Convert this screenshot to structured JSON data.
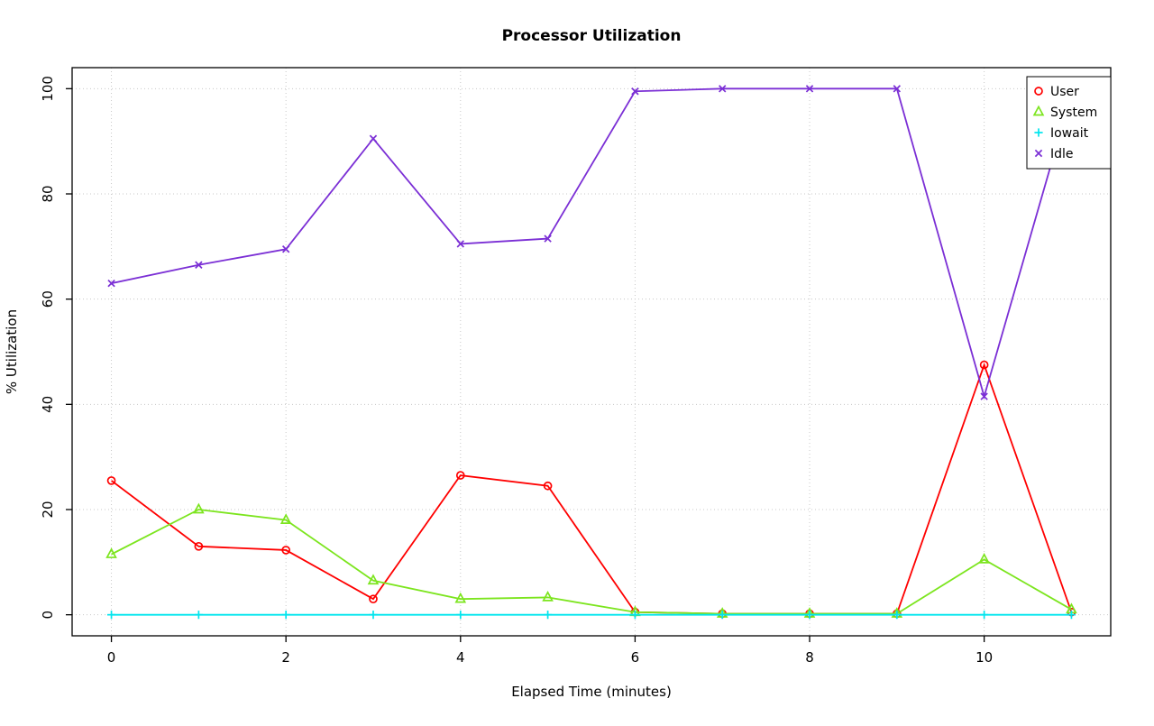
{
  "chart_data": {
    "type": "line",
    "title": "Processor Utilization",
    "xlabel": "Elapsed Time (minutes)",
    "ylabel": "% Utilization",
    "x": [
      0,
      1,
      2,
      3,
      4,
      5,
      6,
      7,
      8,
      9,
      10,
      11
    ],
    "series": [
      {
        "name": "User",
        "color": "#FF0000",
        "marker": "circle",
        "values": [
          25.5,
          13,
          12.3,
          3,
          26.5,
          24.5,
          0.5,
          0.2,
          0.2,
          0.2,
          47.5,
          0.5
        ]
      },
      {
        "name": "System",
        "color": "#7CE51E",
        "marker": "triangle",
        "values": [
          11.5,
          20,
          18,
          6.5,
          3,
          3.3,
          0.5,
          0.2,
          0.2,
          0.2,
          10.5,
          1
        ]
      },
      {
        "name": "Iowait",
        "color": "#00E5EE",
        "marker": "plus",
        "values": [
          0,
          0,
          0,
          0,
          0,
          0,
          0,
          0,
          0,
          0,
          0,
          0
        ]
      },
      {
        "name": "Idle",
        "color": "#7B2FD5",
        "marker": "x",
        "values": [
          63,
          66.5,
          69.5,
          90.5,
          70.5,
          71.5,
          99.5,
          100,
          100,
          100,
          41.5,
          99
        ]
      }
    ],
    "xlim": [
      -0.45,
      11.45
    ],
    "ylim": [
      -4,
      104
    ],
    "xticks": [
      0,
      2,
      4,
      6,
      8,
      10
    ],
    "yticks": [
      0,
      20,
      40,
      60,
      80,
      100
    ],
    "grid": true,
    "grid_color": "#C8C8C8",
    "axis_color": "#000000",
    "background": "#FFFFFF",
    "legend_position": "top-right",
    "legend_labels": [
      "User",
      "System",
      "Iowait",
      "Idle"
    ]
  }
}
